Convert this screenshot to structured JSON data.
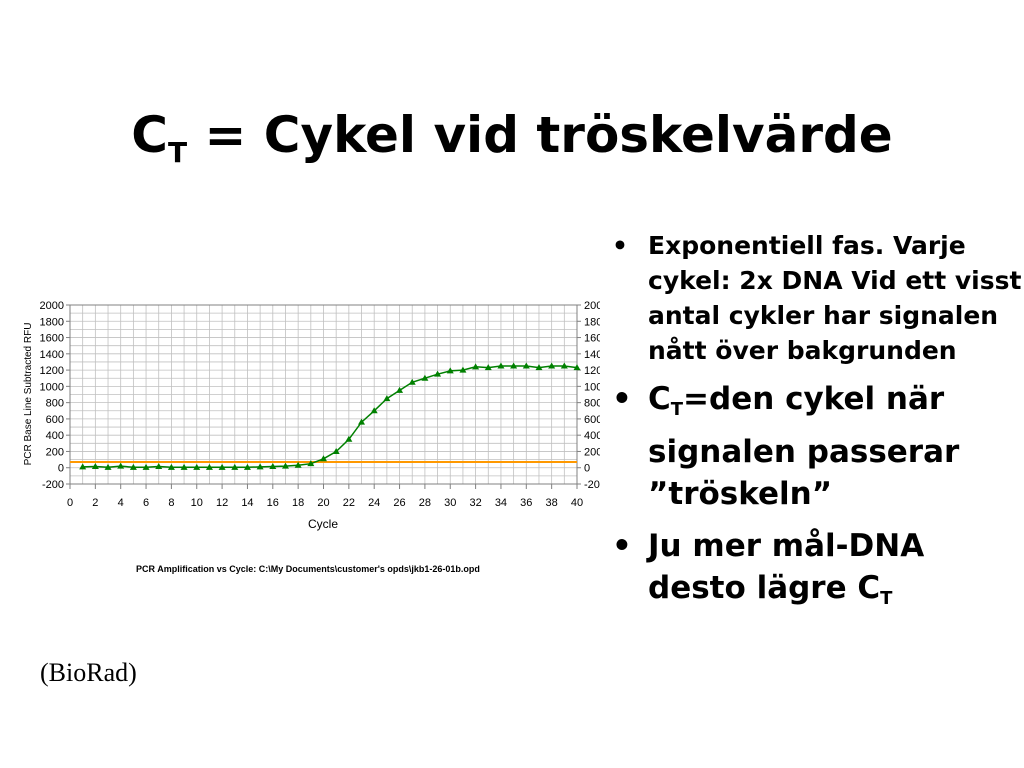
{
  "slide": {
    "title_main": "C",
    "title_sub": "T",
    "title_rest": " = Cykel vid tröskelvärde",
    "credit": "(BioRad)"
  },
  "bullets": [
    {
      "text": "Exponentiell fas. Varje cykel: 2x DNA  Vid ett visst antal cykler har signalen nått över bakgrunden"
    },
    {
      "pre": "C",
      "sub": "T",
      "post": "=den cykel när signalen passerar ”tröskeln”"
    },
    {
      "pre": "Ju mer mål-DNA desto lägre C",
      "sub": "T",
      "post": ""
    }
  ],
  "colors": {
    "series": "#008000",
    "threshold": "#ff9900",
    "grid": "#c0c0c0"
  },
  "chart_data": {
    "type": "line",
    "xlabel": "Cycle",
    "ylabel": "PCR Base Line Subtracted RFU",
    "caption": "PCR Amplification vs Cycle: C:\\My Documents\\customer's opds\\jkb1-26-01b.opd",
    "xlim": [
      0,
      40
    ],
    "ylim": [
      -200,
      2000
    ],
    "x_ticks": [
      0,
      2,
      4,
      6,
      8,
      10,
      12,
      14,
      16,
      18,
      20,
      22,
      24,
      26,
      28,
      30,
      32,
      34,
      36,
      38,
      40
    ],
    "y_ticks": [
      -200,
      0,
      200,
      400,
      600,
      800,
      1000,
      1200,
      1400,
      1600,
      1800,
      2000
    ],
    "grid": true,
    "marker": "triangle",
    "threshold": 70,
    "series": [
      {
        "x": [
          1,
          2,
          3,
          4,
          5,
          6,
          7,
          8,
          9,
          10,
          11,
          12,
          13,
          14,
          15,
          16,
          17,
          18,
          19,
          20,
          21,
          22,
          23,
          24,
          25,
          26,
          27,
          28,
          29,
          30,
          31,
          32,
          33,
          34,
          35,
          36,
          37,
          38,
          39,
          40
        ],
        "values": [
          10,
          15,
          5,
          20,
          5,
          5,
          15,
          5,
          5,
          5,
          5,
          5,
          5,
          5,
          10,
          15,
          20,
          30,
          50,
          110,
          200,
          350,
          560,
          700,
          850,
          950,
          1050,
          1100,
          1150,
          1190,
          1200,
          1240,
          1230,
          1250,
          1250,
          1250,
          1230,
          1250,
          1250,
          1230
        ]
      }
    ]
  }
}
